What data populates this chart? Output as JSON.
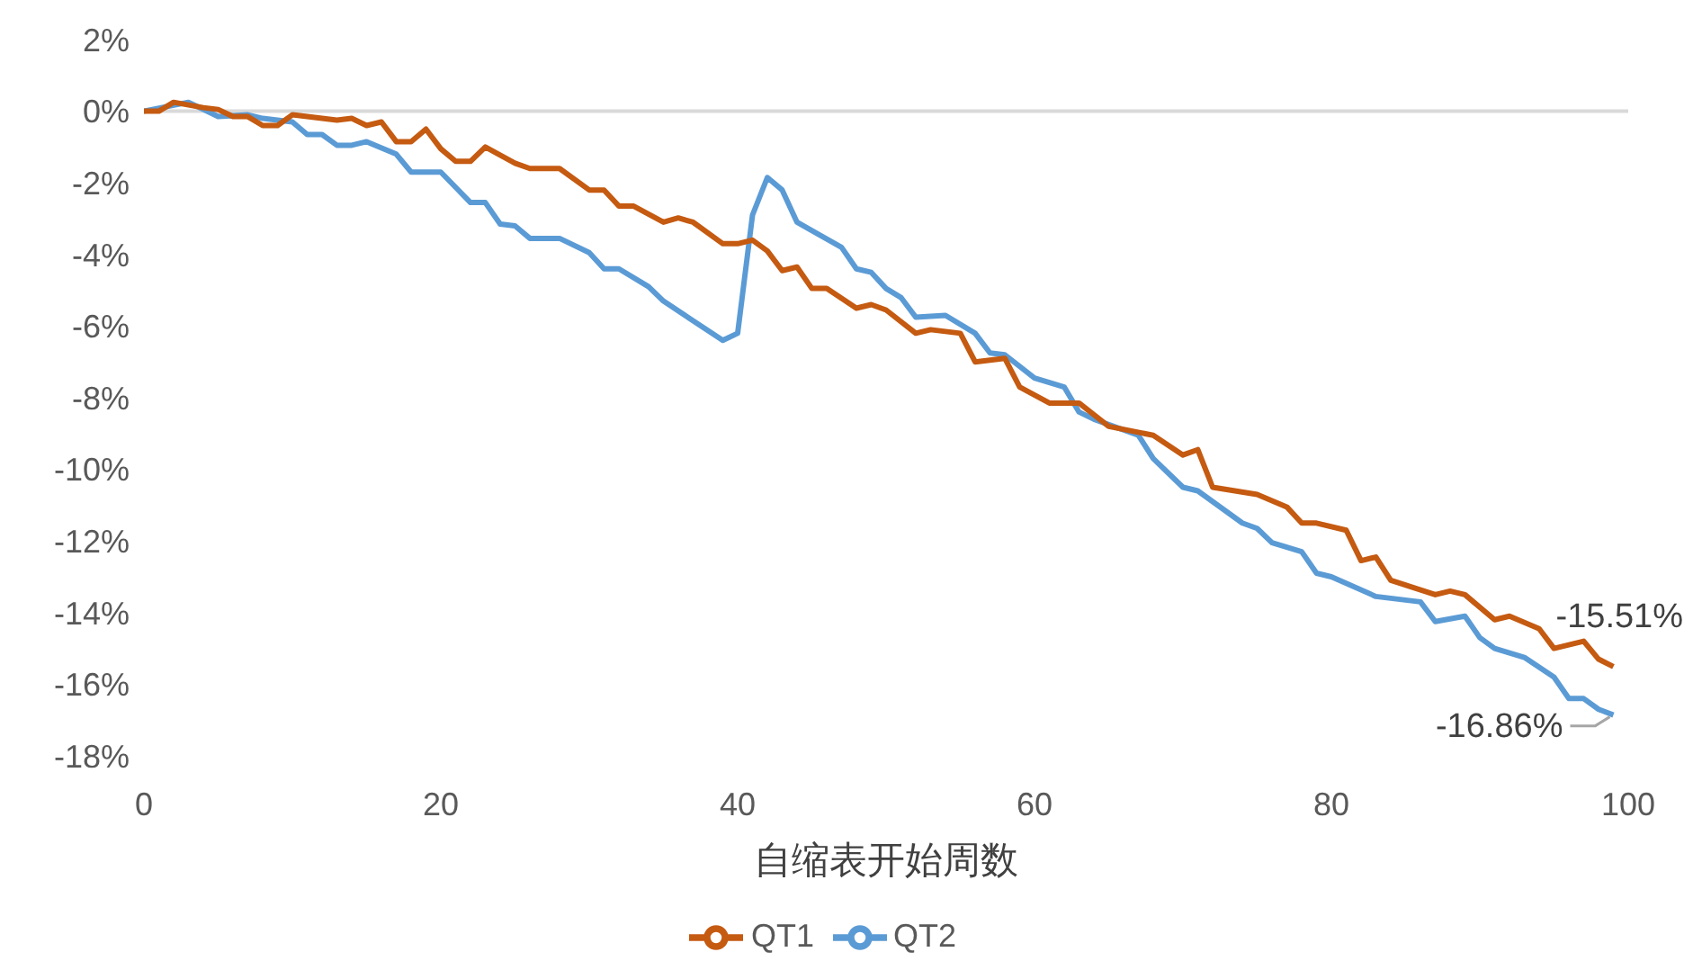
{
  "chart_data": {
    "type": "line",
    "xlabel": "自缩表开始周数",
    "xlim": [
      0,
      100
    ],
    "xticks": [
      0,
      20,
      40,
      60,
      80,
      100
    ],
    "ylim": [
      -18,
      2
    ],
    "yticks": [
      {
        "value": 2,
        "label": "2%"
      },
      {
        "value": 0,
        "label": "0%"
      },
      {
        "value": -2,
        "label": "-2%"
      },
      {
        "value": -4,
        "label": "-4%"
      },
      {
        "value": -6,
        "label": "-6%"
      },
      {
        "value": -8,
        "label": "-8%"
      },
      {
        "value": -10,
        "label": "-10%"
      },
      {
        "value": -12,
        "label": "-12%"
      },
      {
        "value": -14,
        "label": "-14%"
      },
      {
        "value": -16,
        "label": "-16%"
      },
      {
        "value": -18,
        "label": "-18%"
      }
    ],
    "grid": false,
    "legend": "bottom",
    "marker": "none",
    "line_style": "solid",
    "ref_lines": [
      {
        "axis": "y",
        "value": 0,
        "label": null,
        "color": "#d9d9d9"
      }
    ],
    "annotations": [
      {
        "text": "-15.51%",
        "x": 99,
        "y": -15.51
      },
      {
        "text": "-16.86%",
        "x": 99,
        "y": -16.86
      }
    ],
    "series": [
      {
        "name": "QT2",
        "color": "#5b9bd5",
        "x": [
          0,
          3,
          5,
          7,
          8,
          10,
          11,
          12,
          13,
          14,
          15,
          17,
          18,
          20,
          22,
          23,
          24,
          25,
          26,
          28,
          30,
          31,
          32,
          34,
          35,
          37,
          39,
          40,
          41,
          42,
          43,
          44,
          47,
          48,
          49,
          50,
          51,
          52,
          54,
          56,
          57,
          58,
          60,
          62,
          63,
          64,
          67,
          68,
          70,
          71,
          74,
          75,
          76,
          78,
          79,
          80,
          83,
          86,
          87,
          89,
          90,
          91,
          93,
          95,
          96,
          97,
          98,
          99
        ],
        "values": [
          0,
          0.25,
          -0.15,
          -0.1,
          -0.2,
          -0.3,
          -0.65,
          -0.65,
          -0.95,
          -0.95,
          -0.85,
          -1.2,
          -1.7,
          -1.7,
          -2.55,
          -2.55,
          -3.15,
          -3.2,
          -3.55,
          -3.55,
          -3.95,
          -4.4,
          -4.4,
          -4.9,
          -5.3,
          -5.85,
          -6.4,
          -6.2,
          -2.9,
          -1.85,
          -2.2,
          -3.1,
          -3.8,
          -4.4,
          -4.5,
          -4.95,
          -5.2,
          -5.75,
          -5.7,
          -6.2,
          -6.75,
          -6.8,
          -7.45,
          -7.7,
          -8.4,
          -8.6,
          -9.05,
          -9.7,
          -10.5,
          -10.6,
          -11.5,
          -11.65,
          -12.05,
          -12.3,
          -12.9,
          -13.0,
          -13.55,
          -13.7,
          -14.25,
          -14.1,
          -14.7,
          -15.0,
          -15.25,
          -15.8,
          -16.4,
          -16.4,
          -16.7,
          -16.86
        ]
      },
      {
        "name": "QT1",
        "color": "#c55a11",
        "x": [
          0,
          1,
          2,
          4,
          5,
          6,
          7,
          8,
          9,
          10,
          11,
          13,
          14,
          15,
          16,
          17,
          18,
          19,
          20,
          21,
          22,
          23,
          25,
          26,
          28,
          30,
          31,
          32,
          33,
          35,
          36,
          37,
          39,
          40,
          41,
          42,
          43,
          44,
          45,
          46,
          48,
          49,
          50,
          52,
          53,
          55,
          56,
          58,
          59,
          61,
          63,
          65,
          68,
          70,
          71,
          72,
          75,
          77,
          78,
          79,
          81,
          82,
          83,
          84,
          87,
          88,
          89,
          91,
          92,
          94,
          95,
          97,
          98,
          99
        ],
        "values": [
          0,
          0,
          0.25,
          0.1,
          0.05,
          -0.15,
          -0.15,
          -0.4,
          -0.4,
          -0.1,
          -0.15,
          -0.25,
          -0.2,
          -0.4,
          -0.3,
          -0.85,
          -0.85,
          -0.5,
          -1.05,
          -1.4,
          -1.4,
          -1.0,
          -1.45,
          -1.6,
          -1.6,
          -2.2,
          -2.2,
          -2.65,
          -2.65,
          -3.1,
          -2.98,
          -3.1,
          -3.7,
          -3.7,
          -3.6,
          -3.9,
          -4.45,
          -4.35,
          -4.95,
          -4.95,
          -5.5,
          -5.4,
          -5.55,
          -6.2,
          -6.1,
          -6.2,
          -7.0,
          -6.9,
          -7.7,
          -8.15,
          -8.15,
          -8.8,
          -9.05,
          -9.6,
          -9.45,
          -10.5,
          -10.7,
          -11.05,
          -11.5,
          -11.5,
          -11.7,
          -12.55,
          -12.45,
          -13.1,
          -13.5,
          -13.4,
          -13.5,
          -14.2,
          -14.1,
          -14.45,
          -15.0,
          -14.8,
          -15.3,
          -15.51
        ]
      }
    ]
  }
}
